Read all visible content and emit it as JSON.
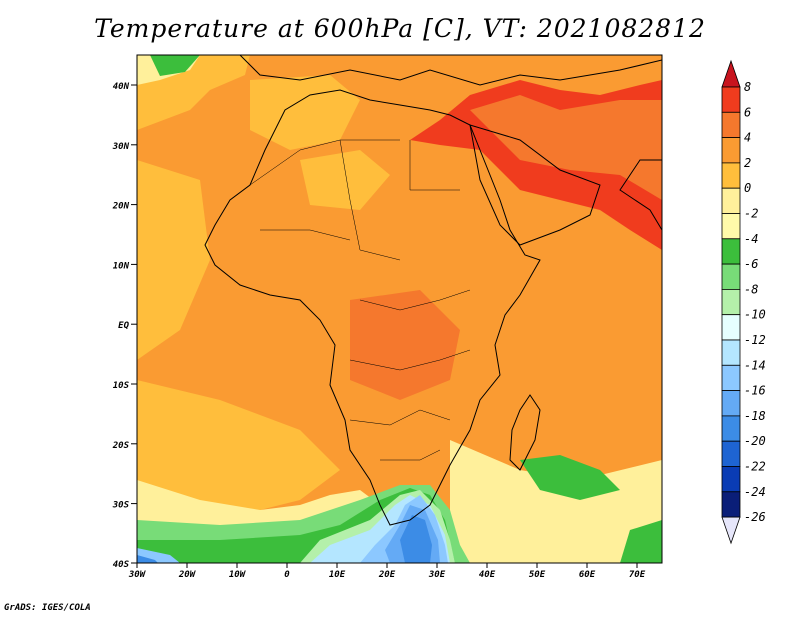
{
  "title": "Temperature at 600hPa [C], VT: 2021082812",
  "footer": "GrADS: IGES/COLA",
  "map": {
    "lat_labels": [
      "40N",
      "30N",
      "20N",
      "10N",
      "EQ",
      "10S",
      "20S",
      "30S",
      "40S"
    ],
    "lon_labels": [
      "30W",
      "20W",
      "10W",
      "0",
      "10E",
      "20E",
      "30E",
      "40E",
      "50E",
      "60E",
      "70E"
    ]
  },
  "colorbar": {
    "labels": [
      "8",
      "6",
      "4",
      "2",
      "0",
      "-2",
      "-4",
      "-6",
      "-8",
      "-10",
      "-12",
      "-14",
      "-16",
      "-18",
      "-20",
      "-22",
      "-24",
      "-26"
    ],
    "colors": [
      "#c8141e",
      "#f03c1e",
      "#f5782d",
      "#fa9b32",
      "#ffbe3c",
      "#fff09b",
      "#fffaaa",
      "#3cbe3c",
      "#78dc78",
      "#b4f0aa",
      "#e6ffff",
      "#b4e6ff",
      "#8cc8ff",
      "#64aaf5",
      "#3c8ce6",
      "#1e64d2",
      "#0a3cb4",
      "#0a1e78",
      "#e6e6fa"
    ]
  },
  "colors": {
    "ocean_default": "#fa9b32",
    "land_default": "#ffbe3c",
    "hot": "#f03c1e",
    "cold": "#3c8ce6"
  }
}
